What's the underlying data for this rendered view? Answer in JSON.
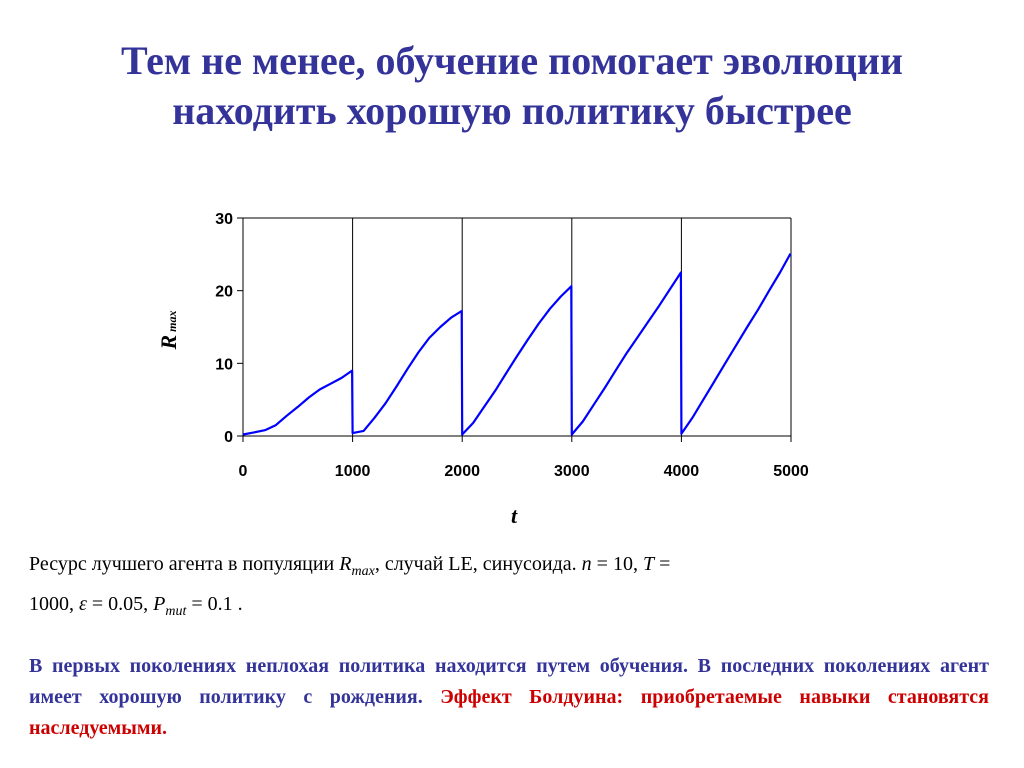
{
  "slide": {
    "title_line1": "Тем не менее, обучение помогает эволюции",
    "title_line2": "находить хорошую политику быстрее"
  },
  "caption": {
    "p1": "Ресурс лучшего агента в популяции ",
    "rmax_r": "R",
    "rmax_sub": "max",
    "p2": ", случай LE, синусоида. ",
    "n_var": "n",
    "n_val": " = 10, ",
    "T_var": "T",
    "T_eq": " =",
    "p3": "1000, ",
    "eps_var": "ε",
    "eps_val": " = 0.05, ",
    "pmut_p": "P",
    "pmut_sub": "mut",
    "pmut_val": " = 0.1 ."
  },
  "note": {
    "blue": "В первых поколениях неплохая политика находится путем обучения. В последних поколениях агент имеет хорошую политику с рождения.",
    "red": "Эффект Болдуина: приобретаемые навыки становятся наследуемыми."
  },
  "chart_data": {
    "type": "line",
    "xlabel": "t",
    "ylabel_main": "R",
    "ylabel_sub": "max",
    "xlim": [
      0,
      5000
    ],
    "ylim": [
      0,
      30
    ],
    "xticks": [
      0,
      1000,
      2000,
      3000,
      4000,
      5000
    ],
    "yticks": [
      0,
      10,
      20,
      30
    ],
    "grid_x": [
      1000,
      2000,
      3000,
      4000,
      5000
    ],
    "line_color": "#0000ff",
    "series": [
      {
        "x": [
          0,
          100,
          200,
          300,
          400,
          500,
          600,
          700,
          800,
          900,
          995,
          1000,
          1100,
          1200,
          1300,
          1400,
          1500,
          1600,
          1700,
          1800,
          1900,
          1995,
          2000,
          2100,
          2200,
          2300,
          2400,
          2500,
          2600,
          2700,
          2800,
          2900,
          2995,
          3000,
          3100,
          3200,
          3300,
          3400,
          3500,
          3600,
          3700,
          3800,
          3900,
          3995,
          4000,
          4100,
          4200,
          4300,
          4400,
          4500,
          4600,
          4700,
          4800,
          4900,
          4995
        ],
        "y": [
          0.2,
          0.5,
          0.8,
          1.5,
          2.8,
          4.0,
          5.3,
          6.4,
          7.2,
          8.0,
          9.0,
          0.4,
          0.7,
          2.5,
          4.5,
          6.8,
          9.2,
          11.5,
          13.5,
          15.0,
          16.3,
          17.2,
          0.2,
          1.8,
          4.0,
          6.2,
          8.6,
          11.0,
          13.3,
          15.5,
          17.5,
          19.2,
          20.6,
          0.2,
          2.0,
          4.3,
          6.6,
          9.0,
          11.4,
          13.6,
          15.8,
          18.0,
          20.3,
          22.5,
          0.3,
          2.5,
          5.0,
          7.5,
          10.0,
          12.5,
          15.0,
          17.4,
          20.0,
          22.5,
          25.1
        ]
      }
    ]
  }
}
